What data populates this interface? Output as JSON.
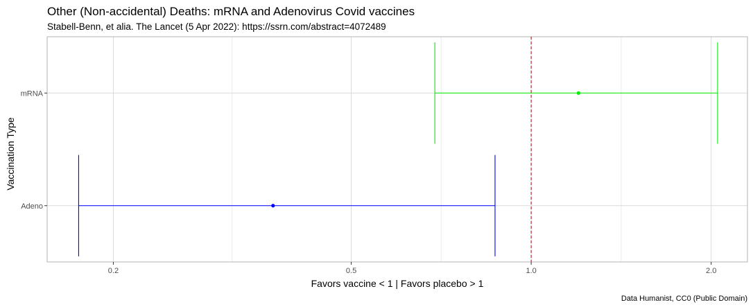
{
  "chart_data": {
    "type": "forest",
    "title": "Other (Non-accidental) Deaths: mRNA and Adenovirus Covid vaccines",
    "subtitle": "Stabell-Benn, et alia. The Lancet (5 Apr 2022): https://ssrn.com/abstract=4072489",
    "xlabel": "Favors vaccine < 1  | Favors placebo > 1",
    "ylabel": "Vaccination Type",
    "caption": "Data Humanist, CC0 (Public Domain)",
    "x_scale": "log",
    "xlim": [
      0.155,
      2.3
    ],
    "x_ticks": [
      {
        "value": 0.2,
        "label": "0.2"
      },
      {
        "value": 0.5,
        "label": "0.5"
      },
      {
        "value": 1.0,
        "label": "1.0"
      },
      {
        "value": 2.0,
        "label": "2.0"
      }
    ],
    "x_minor_ticks": [
      0.316,
      0.707,
      1.414
    ],
    "reference_line": {
      "value": 1.0,
      "color": "#b2182b",
      "style": "dashed"
    },
    "categories": [
      "mRNA",
      "Adeno"
    ],
    "series": [
      {
        "category": "mRNA",
        "estimate": 1.2,
        "lower": 0.69,
        "upper": 2.05,
        "color": "#00ee00"
      },
      {
        "category": "Adeno",
        "estimate": 0.37,
        "lower": 0.175,
        "upper": 0.87,
        "color": "#0000ff"
      }
    ],
    "grid": true
  }
}
